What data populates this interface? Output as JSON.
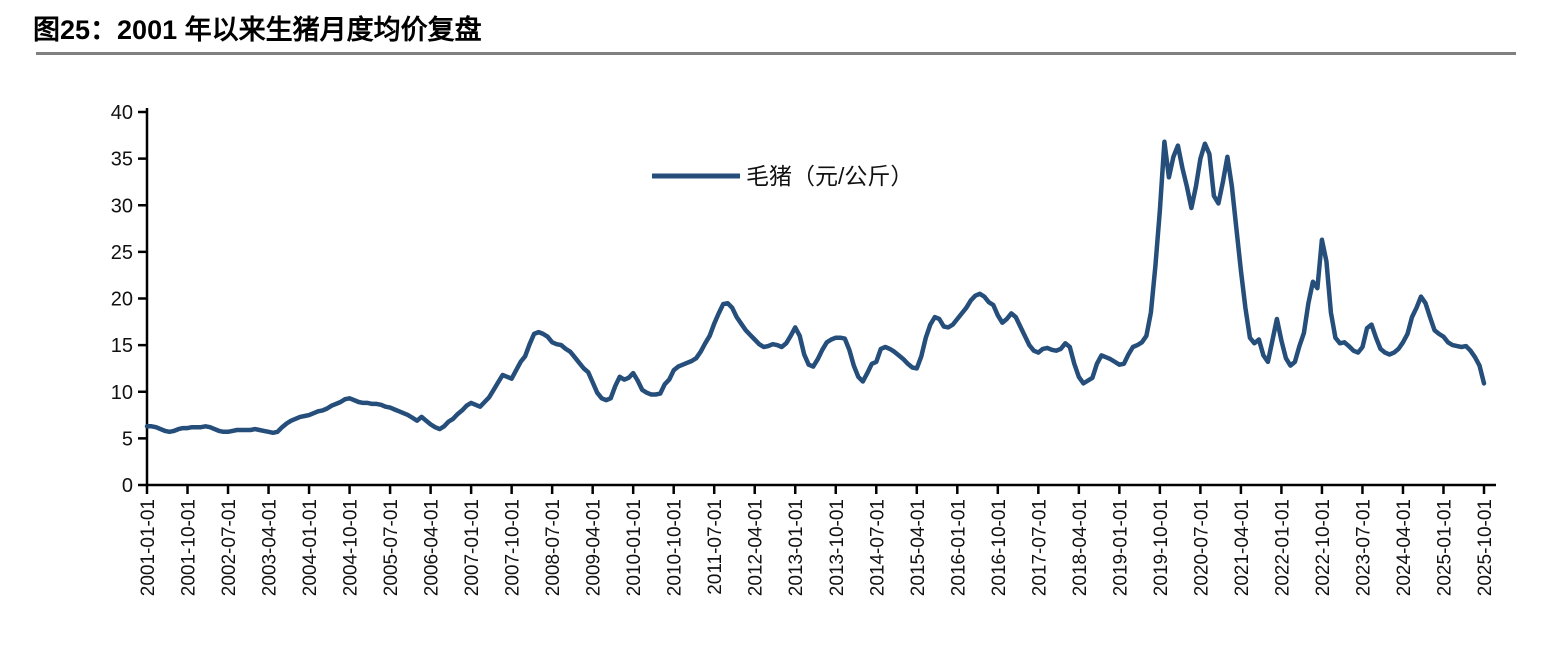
{
  "header": {
    "title": "图25：2001 年以来生猪月度均价复盘"
  },
  "colors": {
    "line": "#254e7b",
    "axis": "#000000",
    "tick_text": "#111111",
    "title_text": "#000000",
    "rule": "#808080"
  },
  "chart_data": {
    "type": "line",
    "title": "图25：2001 年以来生猪月度均价复盘",
    "legend_label": "毛猪（元/公斤）",
    "legend_position": "top-center-inside",
    "xlabel": "",
    "ylabel": "",
    "ylim": [
      0,
      40
    ],
    "yticks": [
      0,
      5,
      10,
      15,
      20,
      25,
      30,
      35,
      40
    ],
    "grid": false,
    "x_start": "2001-01-01",
    "x_interval": "monthly",
    "x_tick_every_n_months": 9,
    "x_tick_labels": [
      "2001-01-01",
      "2001-10-01",
      "2002-07-01",
      "2003-04-01",
      "2004-01-01",
      "2004-10-01",
      "2005-07-01",
      "2006-04-01",
      "2007-01-01",
      "2007-10-01",
      "2008-07-01",
      "2009-04-01",
      "2010-01-01",
      "2010-10-01",
      "2011-07-01",
      "2012-04-01",
      "2013-01-01",
      "2013-10-01",
      "2014-07-01",
      "2015-04-01",
      "2016-01-01",
      "2016-10-01",
      "2017-07-01",
      "2018-04-01",
      "2019-01-01",
      "2019-10-01",
      "2020-07-01",
      "2021-04-01",
      "2022-01-01",
      "2022-10-01",
      "2023-07-01",
      "2024-04-01",
      "2025-01-01",
      "2025-10-01"
    ],
    "series": [
      {
        "name": "毛猪（元/公斤）",
        "values": [
          6.3,
          6.3,
          6.2,
          6.0,
          5.8,
          5.7,
          5.8,
          6.0,
          6.1,
          6.1,
          6.2,
          6.2,
          6.2,
          6.3,
          6.2,
          6.0,
          5.8,
          5.7,
          5.7,
          5.8,
          5.9,
          5.9,
          5.9,
          5.9,
          6.0,
          5.9,
          5.8,
          5.7,
          5.6,
          5.7,
          6.2,
          6.6,
          6.9,
          7.1,
          7.3,
          7.4,
          7.5,
          7.7,
          7.9,
          8.0,
          8.2,
          8.5,
          8.7,
          8.9,
          9.2,
          9.3,
          9.1,
          8.9,
          8.8,
          8.8,
          8.7,
          8.7,
          8.6,
          8.4,
          8.3,
          8.1,
          7.9,
          7.7,
          7.5,
          7.2,
          6.9,
          7.3,
          6.9,
          6.5,
          6.2,
          6.0,
          6.3,
          6.8,
          7.1,
          7.6,
          8.0,
          8.5,
          8.8,
          8.6,
          8.4,
          8.9,
          9.4,
          10.2,
          11.0,
          11.8,
          11.6,
          11.4,
          12.3,
          13.2,
          13.8,
          15.1,
          16.2,
          16.4,
          16.2,
          15.9,
          15.3,
          15.1,
          15.0,
          14.6,
          14.3,
          13.7,
          13.1,
          12.5,
          12.1,
          11.0,
          9.9,
          9.3,
          9.1,
          9.3,
          10.6,
          11.6,
          11.3,
          11.5,
          12.0,
          11.2,
          10.2,
          9.9,
          9.7,
          9.7,
          9.8,
          10.8,
          11.3,
          12.3,
          12.7,
          12.9,
          13.1,
          13.3,
          13.6,
          14.3,
          15.2,
          16.0,
          17.3,
          18.4,
          19.4,
          19.5,
          19.0,
          18.0,
          17.3,
          16.6,
          16.1,
          15.6,
          15.1,
          14.8,
          14.9,
          15.1,
          15.0,
          14.8,
          15.2,
          16.0,
          16.9,
          16.0,
          14.0,
          12.9,
          12.7,
          13.5,
          14.5,
          15.3,
          15.6,
          15.8,
          15.8,
          15.7,
          14.5,
          12.8,
          11.6,
          11.1,
          12.0,
          13.0,
          13.2,
          14.6,
          14.8,
          14.6,
          14.3,
          13.9,
          13.5,
          13.0,
          12.6,
          12.5,
          13.8,
          15.8,
          17.2,
          18.0,
          17.8,
          17.0,
          16.9,
          17.2,
          17.8,
          18.4,
          19.0,
          19.8,
          20.3,
          20.5,
          20.2,
          19.6,
          19.3,
          18.2,
          17.4,
          17.8,
          18.4,
          18.0,
          17.0,
          16.0,
          15.0,
          14.4,
          14.2,
          14.6,
          14.7,
          14.5,
          14.4,
          14.6,
          15.2,
          14.8,
          13.0,
          11.6,
          10.9,
          11.2,
          11.5,
          13.0,
          13.9,
          13.7,
          13.5,
          13.2,
          12.9,
          13.0,
          14.0,
          14.8,
          15.0,
          15.3,
          16.0,
          18.5,
          23.5,
          29.5,
          36.8,
          33.0,
          35.2,
          36.4,
          34.0,
          32.0,
          29.7,
          32.0,
          35.0,
          36.6,
          35.5,
          31.0,
          30.2,
          32.5,
          35.2,
          32.0,
          27.5,
          23.0,
          19.0,
          15.8,
          15.2,
          15.6,
          13.9,
          13.2,
          15.5,
          17.8,
          15.5,
          13.6,
          12.8,
          13.2,
          14.9,
          16.3,
          19.5,
          21.8,
          21.1,
          26.3,
          24.0,
          18.5,
          15.8,
          15.2,
          15.3,
          14.9,
          14.4,
          14.2,
          14.8,
          16.8,
          17.2,
          15.8,
          14.6,
          14.2,
          14.0,
          14.2,
          14.6,
          15.3,
          16.2,
          18.0,
          19.0,
          20.2,
          19.5,
          18.0,
          16.6,
          16.2,
          15.9,
          15.3,
          15.0,
          14.9,
          14.8,
          14.9,
          14.4,
          13.7,
          12.8,
          10.9
        ]
      }
    ]
  }
}
